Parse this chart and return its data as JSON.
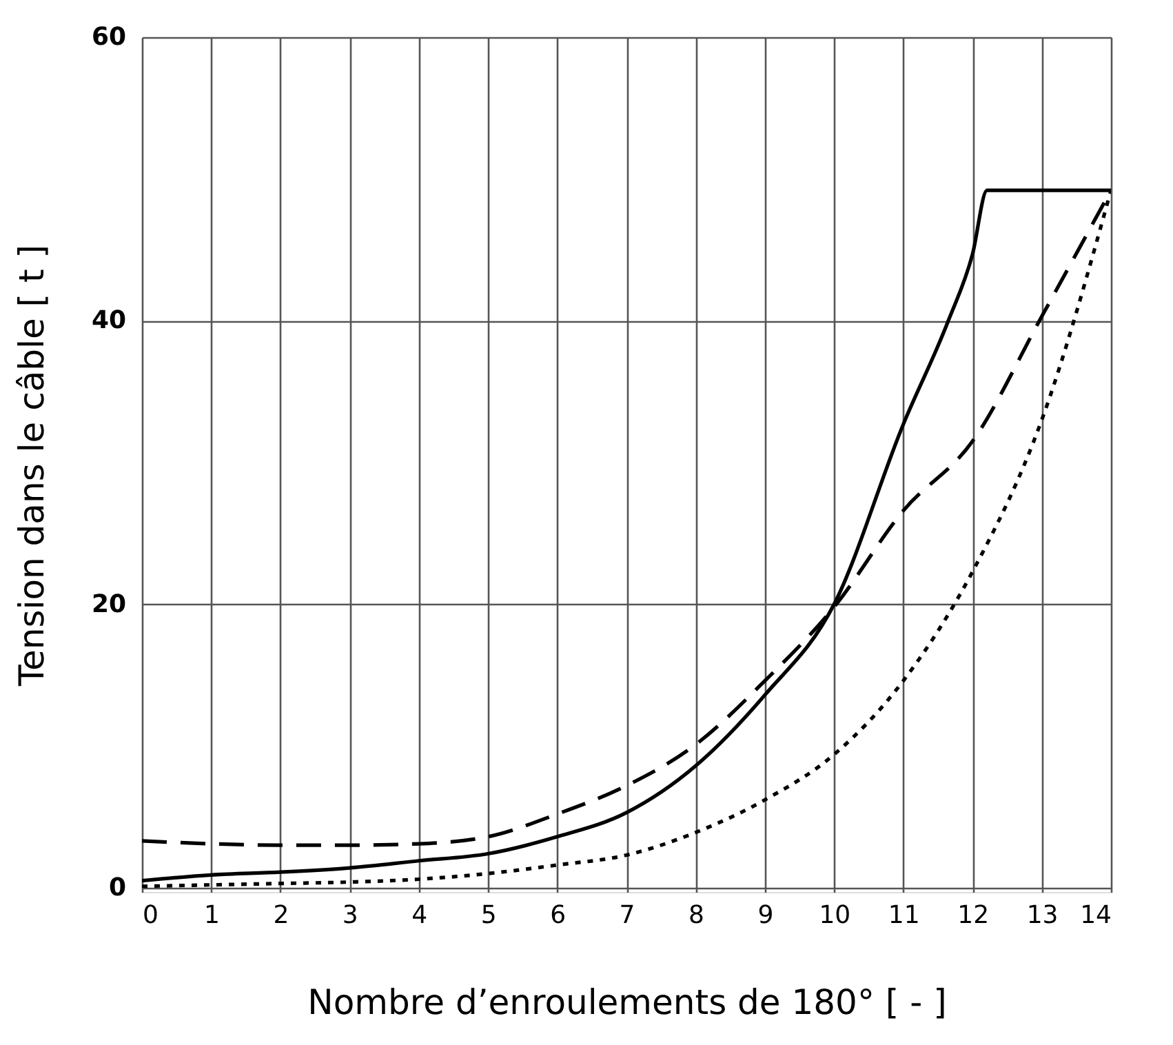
{
  "chart_data": {
    "type": "line",
    "xlabel": "Nombre d’enroulements de 180° [ - ]",
    "ylabel": "Tension dans le câble [ t ]",
    "xlim": [
      0,
      14
    ],
    "ylim": [
      -0.3,
      60
    ],
    "xticks": [
      0,
      1,
      2,
      3,
      4,
      5,
      6,
      7,
      8,
      9,
      10,
      11,
      12,
      13,
      14
    ],
    "yticks": [
      0,
      20,
      40,
      60
    ],
    "grid": true,
    "marker": "none",
    "series": [
      {
        "color": "#000000",
        "line_style": "solid",
        "x": [
          0,
          1,
          2,
          3,
          4,
          5,
          6,
          7,
          8,
          9,
          10,
          11,
          11.65,
          12,
          12.21,
          14
        ],
        "values": [
          0.5,
          0.9,
          1.1,
          1.4,
          1.9,
          2.4,
          3.6,
          5.3,
          8.6,
          13.6,
          20,
          32.7,
          40,
          44.7,
          49.2,
          49.2
        ]
      },
      {
        "color": "#000000",
        "line_style": "dashed",
        "x": [
          0,
          1,
          2,
          3,
          4,
          5,
          6,
          7,
          8,
          9,
          10,
          11,
          12,
          13,
          14
        ],
        "values": [
          3.3,
          3.1,
          3.0,
          3.0,
          3.1,
          3.6,
          5.2,
          7.2,
          10.1,
          14.6,
          19.8,
          26.6,
          31.5,
          40.3,
          49.2
        ]
      },
      {
        "color": "#000000",
        "line_style": "dotted",
        "x": [
          0,
          1,
          2,
          3,
          4,
          5,
          6,
          7,
          8,
          9,
          10,
          11,
          12,
          13,
          14
        ],
        "values": [
          0.1,
          0.2,
          0.3,
          0.4,
          0.6,
          1.0,
          1.6,
          2.3,
          3.9,
          6.2,
          9.4,
          14.6,
          22.3,
          33,
          49.2
        ]
      }
    ]
  }
}
